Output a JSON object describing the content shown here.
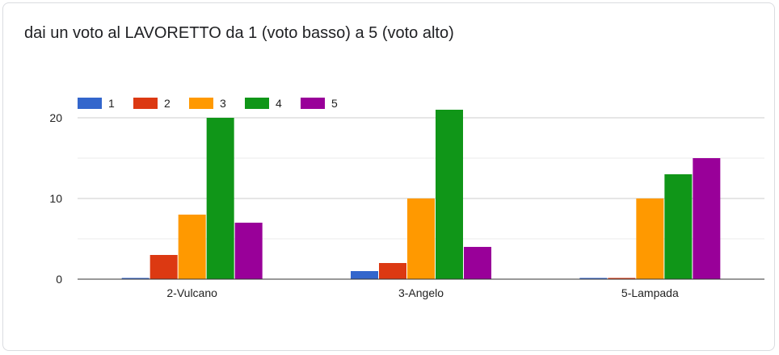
{
  "chart_data": {
    "type": "bar",
    "title": "dai un voto al LAVORETTO da 1 (voto basso) a 5 (voto alto)",
    "xlabel": "",
    "ylabel": "",
    "categories": [
      "2-Vulcano",
      "3-Angelo",
      "5-Lampada"
    ],
    "series": [
      {
        "name": "1",
        "color": "#3366cc",
        "values": [
          0,
          1,
          0
        ]
      },
      {
        "name": "2",
        "color": "#dc3912",
        "values": [
          3,
          2,
          0
        ]
      },
      {
        "name": "3",
        "color": "#ff9900",
        "values": [
          8,
          10,
          10
        ]
      },
      {
        "name": "4",
        "color": "#109618",
        "values": [
          20,
          21,
          13
        ]
      },
      {
        "name": "5",
        "color": "#990099",
        "values": [
          7,
          4,
          15
        ]
      }
    ],
    "ylim": [
      0,
      22
    ],
    "yticks": [
      0,
      10,
      20
    ],
    "grid": true,
    "legend_position": "top-left"
  }
}
